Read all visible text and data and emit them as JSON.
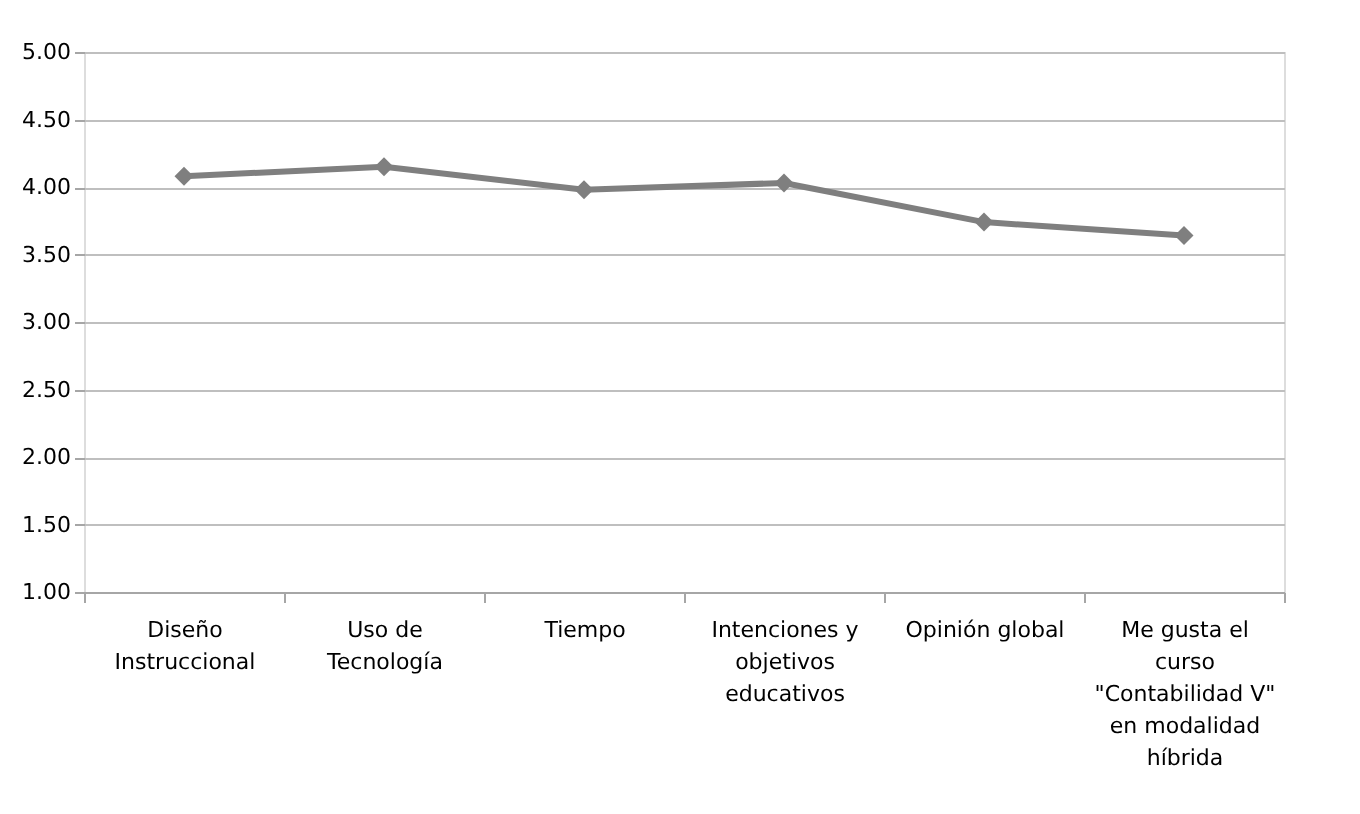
{
  "chart_data": {
    "type": "line",
    "categories": [
      "Diseño\nInstruccional",
      "Uso de\nTecnología",
      "Tiempo",
      "Intenciones y\nobjetivos\neducativos",
      "Opinión global",
      "Me gusta el\ncurso\n\"Contabilidad V\"\nen modalidad\nhíbrida"
    ],
    "series": [
      {
        "color": "#7f7f7f",
        "values": [
          4.08,
          4.15,
          3.98,
          4.03,
          3.74,
          3.64
        ]
      }
    ],
    "ylim": [
      1.0,
      5.0
    ],
    "yticks": [
      {
        "value": 1.0,
        "label": "1.00"
      },
      {
        "value": 1.5,
        "label": "1.50"
      },
      {
        "value": 2.0,
        "label": "2.00"
      },
      {
        "value": 2.5,
        "label": "2.50"
      },
      {
        "value": 3.0,
        "label": "3.00"
      },
      {
        "value": 3.5,
        "label": "3.50"
      },
      {
        "value": 4.0,
        "label": "4.00"
      },
      {
        "value": 4.5,
        "label": "4.50"
      },
      {
        "value": 5.0,
        "label": "5.00"
      }
    ],
    "grid": "y",
    "marker": "diamond",
    "line_style": "solid"
  }
}
